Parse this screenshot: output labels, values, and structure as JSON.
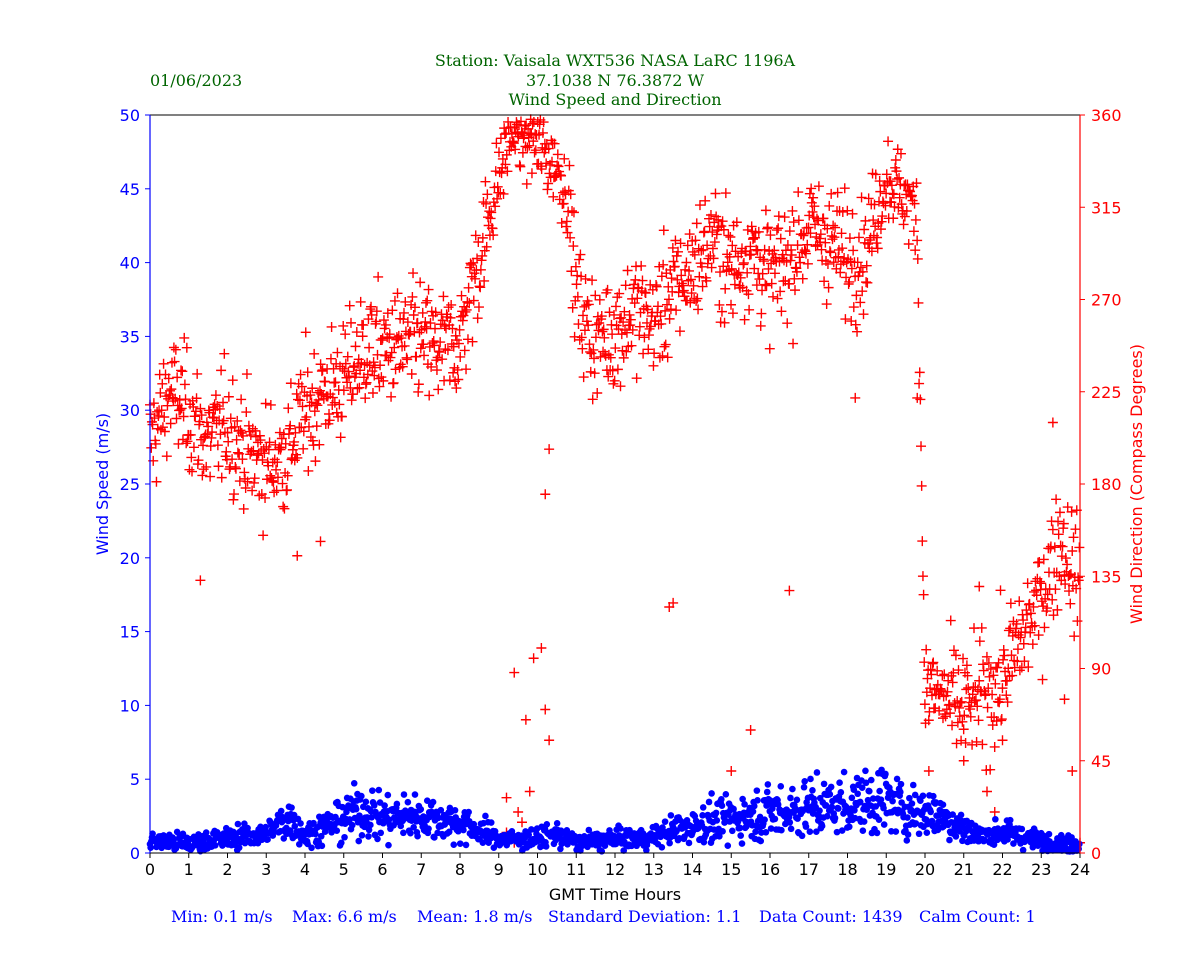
{
  "chart_data": {
    "type": "scatter",
    "header": {
      "date": "01/06/2023",
      "station": "Station:  Vaisala WXT536  NASA LaRC 1196A",
      "coords": "37.1038 N 76.3872 W",
      "title": "Wind Speed and Direction"
    },
    "xlabel": "GMT Time Hours",
    "ylabel_left": "Wind Speed (m/s)",
    "ylabel_right": "Wind Direction (Compass Degrees)",
    "xlim": [
      0,
      24
    ],
    "ylim_left": [
      0,
      50
    ],
    "ylim_right": [
      0,
      360
    ],
    "xticks": [
      0,
      1,
      2,
      3,
      4,
      5,
      6,
      7,
      8,
      9,
      10,
      11,
      12,
      13,
      14,
      15,
      16,
      17,
      18,
      19,
      20,
      21,
      22,
      23,
      24
    ],
    "yticks_left": [
      0,
      5,
      10,
      15,
      20,
      25,
      30,
      35,
      40,
      45,
      50
    ],
    "yticks_right": [
      0,
      45,
      90,
      135,
      180,
      225,
      270,
      315,
      360
    ],
    "footer": {
      "min": "Min: 0.1 m/s",
      "max": "Max: 6.6 m/s",
      "mean": "Mean: 1.8 m/s",
      "std": "Standard Deviation: 1.1",
      "count": "Data Count: 1439",
      "calm": "Calm Count:  1"
    },
    "colors": {
      "speed": "#0000ff",
      "direction": "#ff0000",
      "title": "#006400",
      "footer": "#0000ff"
    },
    "series": [
      {
        "name": "Wind Speed (m/s)",
        "axis": "left",
        "marker": "circle",
        "color": "#0000ff",
        "profile": [
          [
            0,
            0.9
          ],
          [
            1,
            0.6
          ],
          [
            2,
            1.0
          ],
          [
            3,
            1.3
          ],
          [
            3.6,
            2.4
          ],
          [
            4,
            1.2
          ],
          [
            5,
            2.3
          ],
          [
            5.5,
            3.0
          ],
          [
            6,
            2.4
          ],
          [
            7,
            2.5
          ],
          [
            8,
            2.0
          ],
          [
            9,
            1.0
          ],
          [
            9.5,
            0.9
          ],
          [
            10,
            1.0
          ],
          [
            10.5,
            1.3
          ],
          [
            11,
            0.7
          ],
          [
            12,
            0.9
          ],
          [
            13,
            1.1
          ],
          [
            14,
            1.9
          ],
          [
            15,
            2.3
          ],
          [
            16,
            2.8
          ],
          [
            17,
            3.0
          ],
          [
            18,
            3.3
          ],
          [
            19,
            3.6
          ],
          [
            19.5,
            2.8
          ],
          [
            20,
            2.9
          ],
          [
            20.5,
            2.5
          ],
          [
            21,
            1.6
          ],
          [
            21.5,
            1.2
          ],
          [
            22,
            1.4
          ],
          [
            23,
            0.8
          ],
          [
            24,
            0.4
          ]
        ]
      },
      {
        "name": "Wind Direction (Compass Degrees)",
        "axis": "right",
        "marker": "plus",
        "color": "#ff0000",
        "profile": [
          [
            0,
            200
          ],
          [
            0.5,
            225
          ],
          [
            1,
            215
          ],
          [
            1.5,
            200
          ],
          [
            2,
            210
          ],
          [
            2.5,
            195
          ],
          [
            3,
            190
          ],
          [
            3.5,
            195
          ],
          [
            4,
            215
          ],
          [
            4.5,
            225
          ],
          [
            5,
            230
          ],
          [
            5.5,
            245
          ],
          [
            6,
            245
          ],
          [
            7,
            250
          ],
          [
            7.5,
            245
          ],
          [
            8,
            250
          ],
          [
            8.5,
            290
          ],
          [
            9,
            330
          ],
          [
            9.3,
            350
          ],
          [
            9.6,
            355
          ],
          [
            10,
            345
          ],
          [
            10.5,
            335
          ],
          [
            10.8,
            320
          ],
          [
            11,
            270
          ],
          [
            11.5,
            250
          ],
          [
            12,
            255
          ],
          [
            12.5,
            265
          ],
          [
            13,
            260
          ],
          [
            13.5,
            275
          ],
          [
            14,
            285
          ],
          [
            14.5,
            300
          ],
          [
            15,
            285
          ],
          [
            15.5,
            295
          ],
          [
            16,
            280
          ],
          [
            16.5,
            290
          ],
          [
            17,
            305
          ],
          [
            17.5,
            300
          ],
          [
            18,
            290
          ],
          [
            18.5,
            295
          ],
          [
            19,
            330
          ],
          [
            19.5,
            320
          ],
          [
            19.8,
            310
          ],
          [
            20,
            80
          ],
          [
            20.5,
            75
          ],
          [
            21,
            70
          ],
          [
            21.5,
            75
          ],
          [
            22,
            85
          ],
          [
            22.5,
            105
          ],
          [
            23,
            125
          ],
          [
            23.5,
            155
          ],
          [
            24,
            130
          ]
        ],
        "scattered": [
          [
            9.2,
            10
          ],
          [
            9.4,
            5
          ],
          [
            9.6,
            15
          ],
          [
            9.8,
            30
          ],
          [
            9.9,
            95
          ],
          [
            10.1,
            100
          ],
          [
            10.2,
            70
          ],
          [
            10.3,
            55
          ],
          [
            9.4,
            88
          ],
          [
            9.7,
            65
          ],
          [
            10.2,
            175
          ],
          [
            10.3,
            197
          ],
          [
            9.2,
            27
          ],
          [
            9.5,
            20
          ],
          [
            20.1,
            40
          ],
          [
            21,
            45
          ],
          [
            21.4,
            130
          ],
          [
            21.6,
            30
          ],
          [
            21.8,
            20
          ],
          [
            22.0,
            55
          ],
          [
            23.3,
            210
          ],
          [
            23.6,
            75
          ],
          [
            23.8,
            40
          ],
          [
            24,
            5
          ],
          [
            13.4,
            120
          ],
          [
            13.5,
            122
          ],
          [
            16.5,
            128
          ],
          [
            1.3,
            133
          ],
          [
            3.8,
            145
          ],
          [
            4.4,
            152
          ],
          [
            18.2,
            222
          ],
          [
            19.8,
            222
          ],
          [
            15.5,
            60
          ],
          [
            15.0,
            40
          ]
        ]
      }
    ]
  }
}
